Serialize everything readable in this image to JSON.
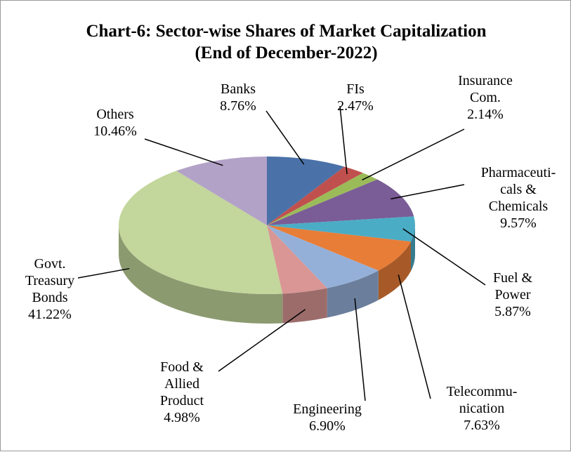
{
  "chart_data": {
    "type": "pie",
    "title": "Chart-6: Sector-wise Shares of Market Capitalization\n(End of  December-2022)",
    "categories": [
      "Banks",
      "FIs",
      "Insurance\nCom.",
      "Pharmaceuti-\ncals &\nChemicals",
      "Fuel &\nPower",
      "Telecommu-\nnication",
      "Engineering",
      "Food &\nAllied\nProduct",
      "Govt.\nTreasury\nBonds",
      "Others"
    ],
    "values": [
      8.76,
      2.47,
      2.14,
      9.57,
      5.87,
      7.63,
      6.9,
      4.98,
      41.22,
      10.46
    ],
    "value_labels": [
      "8.76%",
      "2.47%",
      "2.14%",
      "9.57%",
      "5.87%",
      "7.63%",
      "6.90%",
      "4.98%",
      "41.22%",
      "10.46%"
    ],
    "colors": [
      "#4a72a8",
      "#c0504d",
      "#9bbb59",
      "#7a5c96",
      "#4bacc6",
      "#e87d37",
      "#95b0d8",
      "#d99694",
      "#c3d69b",
      "#b3a2c7"
    ]
  }
}
